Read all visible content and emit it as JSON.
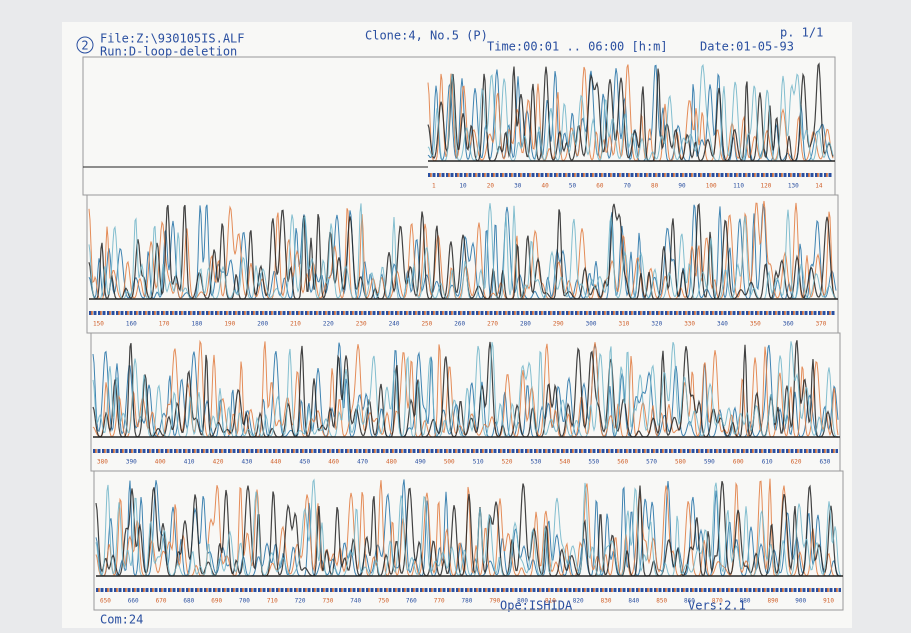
{
  "header": {
    "logo": "2",
    "file": "File:Z:\\930105IS.ALF",
    "run": "Run:D-loop-deletion",
    "clone": "Clone:4, No.5 (P)",
    "time": "Time:00:01 .. 06:00 [h:m]",
    "date": "Date:01-05-93",
    "page": "p. 1/1"
  },
  "panels": [
    {
      "scale": [
        "1",
        "10",
        "20",
        "30",
        "40",
        "50",
        "60",
        "70",
        "80",
        "90",
        "100",
        "110",
        "120",
        "130",
        "14"
      ]
    },
    {
      "scale": [
        "150",
        "160",
        "170",
        "180",
        "190",
        "200",
        "210",
        "220",
        "230",
        "240",
        "250",
        "260",
        "270",
        "280",
        "290",
        "300",
        "310",
        "320",
        "330",
        "340",
        "350",
        "360",
        "370"
      ]
    },
    {
      "scale": [
        "380",
        "390",
        "400",
        "410",
        "420",
        "430",
        "440",
        "450",
        "460",
        "470",
        "480",
        "490",
        "500",
        "510",
        "520",
        "530",
        "540",
        "550",
        "560",
        "570",
        "580",
        "590",
        "600",
        "610",
        "620",
        "630"
      ]
    },
    {
      "scale": [
        "650",
        "660",
        "670",
        "680",
        "690",
        "700",
        "710",
        "720",
        "730",
        "740",
        "750",
        "760",
        "770",
        "780",
        "790",
        "800",
        "810",
        "820",
        "830",
        "840",
        "850",
        "860",
        "870",
        "880",
        "890",
        "900",
        "910"
      ]
    }
  ],
  "footer": {
    "com": "Com:24",
    "ope": "Ope:ISHIDA",
    "vers": "Vers:2.1"
  }
}
